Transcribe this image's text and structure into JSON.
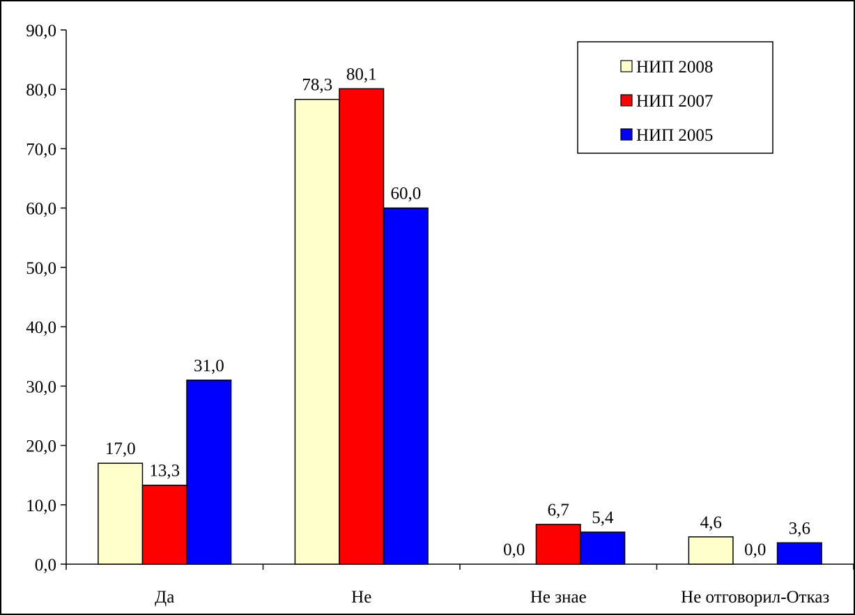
{
  "chart_data": {
    "type": "bar",
    "categories": [
      "Да",
      "Не",
      "Не знае",
      "Не отговорил-Отказ"
    ],
    "series": [
      {
        "name": "НИП 2008",
        "color": "#ffffcc",
        "values": [
          17.0,
          78.3,
          0.0,
          4.6
        ],
        "labels": [
          "17,0",
          "78,3",
          "0,0",
          "4,6"
        ]
      },
      {
        "name": "НИП 2007",
        "color": "#ff0000",
        "values": [
          13.3,
          80.1,
          6.7,
          0.0
        ],
        "labels": [
          "13,3",
          "80,1",
          "6,7",
          "0,0"
        ]
      },
      {
        "name": "НИП 2005",
        "color": "#0000ff",
        "values": [
          31.0,
          60.0,
          5.4,
          3.6
        ],
        "labels": [
          "31,0",
          "60,0",
          "5,4",
          "3,6"
        ]
      }
    ],
    "ylim": [
      0,
      90
    ],
    "yticks": [
      0,
      10,
      20,
      30,
      40,
      50,
      60,
      70,
      80,
      90
    ],
    "ytick_labels": [
      "0,0",
      "10,0",
      "20,0",
      "30,0",
      "40,0",
      "50,0",
      "60,0",
      "70,0",
      "80,0",
      "90,0"
    ],
    "title": "",
    "xlabel": "",
    "ylabel": "",
    "grid": false,
    "legend_position": "top-right"
  }
}
